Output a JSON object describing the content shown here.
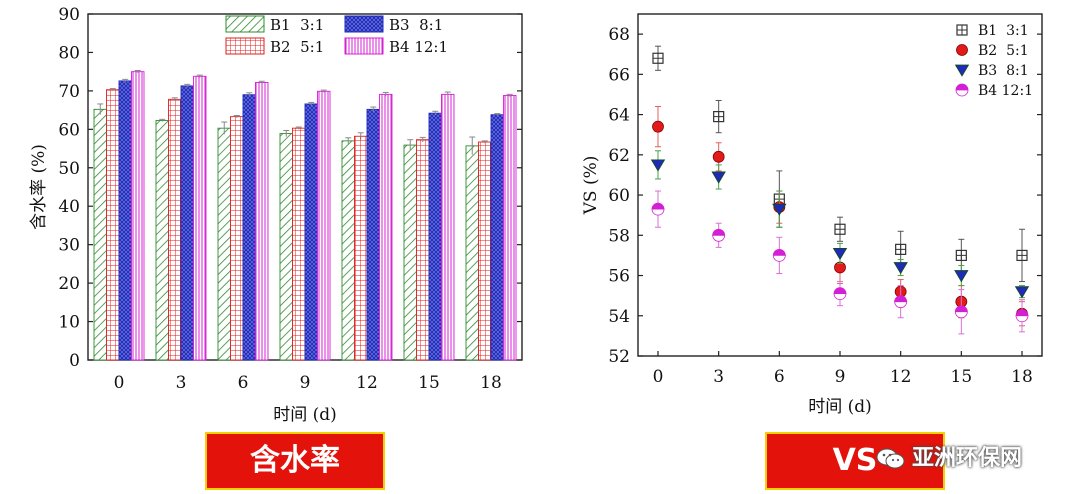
{
  "colors": {
    "B1": "#2e8b2e",
    "B2": "#e11b1b",
    "B3": "#1f2bb8",
    "B4": "#d41fd4",
    "banner": "#e3120b"
  },
  "chart_data": [
    {
      "type": "bar",
      "ylabel": "含水率 (%)",
      "xlabel": "时间 (d)",
      "ylim": [
        0,
        90
      ],
      "yticks": [
        0,
        10,
        20,
        30,
        40,
        50,
        60,
        70,
        80,
        90
      ],
      "categories": [
        "0",
        "3",
        "6",
        "9",
        "12",
        "15",
        "18"
      ],
      "legend_position": "top-center",
      "series": [
        {
          "name": "B1  3:1",
          "values": [
            65.2,
            62.3,
            60.3,
            58.9,
            57.0,
            55.9,
            55.7
          ],
          "errors": [
            1.4,
            0.3,
            1.6,
            0.8,
            0.8,
            1.4,
            2.3
          ]
        },
        {
          "name": "B2  5:1",
          "values": [
            70.3,
            67.8,
            63.3,
            60.3,
            58.2,
            57.3,
            56.7
          ],
          "errors": [
            0.3,
            0.4,
            0.3,
            0.3,
            0.9,
            0.6,
            0.3
          ]
        },
        {
          "name": "B3  8:1",
          "values": [
            72.6,
            71.3,
            69.0,
            66.6,
            65.2,
            64.2,
            63.8
          ],
          "errors": [
            0.4,
            0.4,
            0.5,
            0.4,
            0.6,
            0.5,
            0.3
          ]
        },
        {
          "name": "B4 12:1",
          "values": [
            75.0,
            73.8,
            72.2,
            69.9,
            69.1,
            69.1,
            68.8
          ],
          "errors": [
            0.3,
            0.3,
            0.3,
            0.3,
            0.5,
            0.6,
            0.3
          ]
        }
      ],
      "banner_label": "含水率"
    },
    {
      "type": "scatter",
      "ylabel": "VS (%)",
      "xlabel": "时间 (d)",
      "ylim": [
        52,
        69
      ],
      "yticks": [
        52,
        54,
        56,
        58,
        60,
        62,
        64,
        66,
        68
      ],
      "categories": [
        "0",
        "3",
        "6",
        "9",
        "12",
        "15",
        "18"
      ],
      "legend_position": "top-right",
      "series": [
        {
          "name": "B1  3:1",
          "marker": "square-cross",
          "values": [
            66.8,
            63.9,
            59.8,
            58.3,
            57.3,
            57.0,
            57.0
          ],
          "errors": [
            0.6,
            0.8,
            1.4,
            0.6,
            0.9,
            0.8,
            1.3
          ]
        },
        {
          "name": "B2  5:1",
          "marker": "circle",
          "values": [
            63.4,
            61.9,
            59.4,
            56.4,
            55.2,
            54.7,
            54.1
          ],
          "errors": [
            1.0,
            0.7,
            0.8,
            0.8,
            0.6,
            0.8,
            0.6
          ]
        },
        {
          "name": "B3  8:1",
          "marker": "triangle-down",
          "values": [
            61.5,
            60.9,
            59.3,
            57.1,
            56.4,
            56.0,
            55.2
          ],
          "errors": [
            0.7,
            0.6,
            0.9,
            0.5,
            0.4,
            0.5,
            0.3
          ]
        },
        {
          "name": "B4 12:1",
          "marker": "half-circle",
          "values": [
            59.3,
            58.0,
            57.0,
            55.1,
            54.7,
            54.2,
            54.0
          ],
          "errors": [
            0.9,
            0.6,
            0.9,
            0.6,
            0.8,
            1.1,
            0.8
          ]
        }
      ],
      "banner_label": "VS"
    }
  ],
  "watermark": {
    "text": "亚洲环保网",
    "icon": "wechat-icon"
  }
}
